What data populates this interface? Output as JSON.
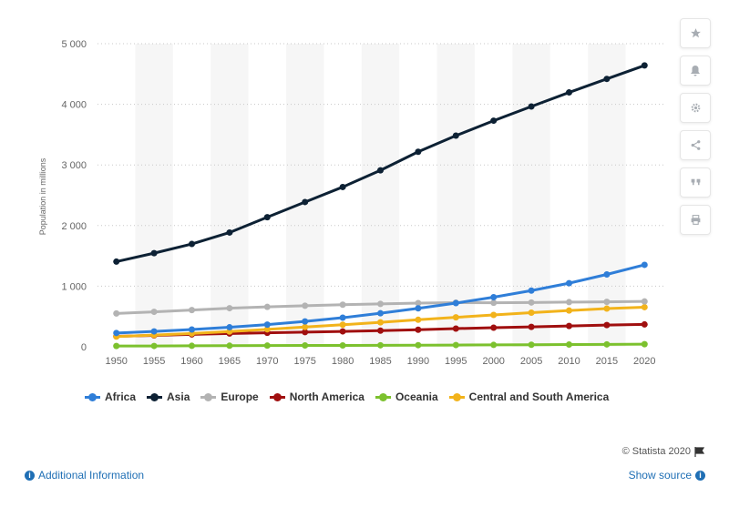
{
  "chart_data": {
    "type": "line",
    "title": "",
    "xlabel": "",
    "ylabel": "Population in millions",
    "categories": [
      "1950",
      "1955",
      "1960",
      "1965",
      "1970",
      "1975",
      "1980",
      "1985",
      "1990",
      "1995",
      "2000",
      "2005",
      "2010",
      "2015",
      "2020"
    ],
    "ylim": [
      0,
      5000
    ],
    "y_ticks": [
      0,
      1000,
      2000,
      3000,
      4000,
      5000
    ],
    "y_tick_labels": [
      "0",
      "1 000",
      "2 000",
      "3 000",
      "4 000",
      "5 000"
    ],
    "grid": true,
    "legend_position": "bottom",
    "series": [
      {
        "name": "Africa",
        "color": "#2f7ed8",
        "values": [
          228,
          254,
          285,
          322,
          366,
          418,
          480,
          553,
          634,
          721,
          818,
          927,
          1049,
          1194,
          1352
        ]
      },
      {
        "name": "Asia",
        "color": "#0d2134",
        "values": [
          1405,
          1545,
          1696,
          1885,
          2138,
          2388,
          2636,
          2911,
          3217,
          3483,
          3730,
          3964,
          4196,
          4419,
          4641
        ]
      },
      {
        "name": "Europe",
        "color": "#b3b3b3",
        "values": [
          550,
          577,
          606,
          637,
          658,
          678,
          694,
          708,
          721,
          728,
          726,
          731,
          737,
          741,
          748
        ]
      },
      {
        "name": "North America",
        "color": "#a00f0f",
        "values": [
          172,
          187,
          205,
          219,
          231,
          242,
          254,
          267,
          281,
          300,
          315,
          328,
          343,
          358,
          369
        ]
      },
      {
        "name": "Oceania",
        "color": "#7cc12e",
        "values": [
          13,
          14,
          16,
          18,
          20,
          22,
          23,
          25,
          27,
          29,
          31,
          34,
          37,
          40,
          43
        ]
      },
      {
        "name": "Central and South America",
        "color": "#f2b31b",
        "values": [
          169,
          193,
          220,
          251,
          288,
          326,
          364,
          404,
          446,
          486,
          526,
          563,
          598,
          630,
          654
        ]
      }
    ]
  },
  "sidebar": {
    "icons": [
      "star-icon",
      "bell-icon",
      "gear-icon",
      "share-icon",
      "quote-icon",
      "print-icon"
    ]
  },
  "footer": {
    "credit": "© Statista 2020",
    "additional_info": "Additional Information",
    "show_source": "Show source"
  }
}
